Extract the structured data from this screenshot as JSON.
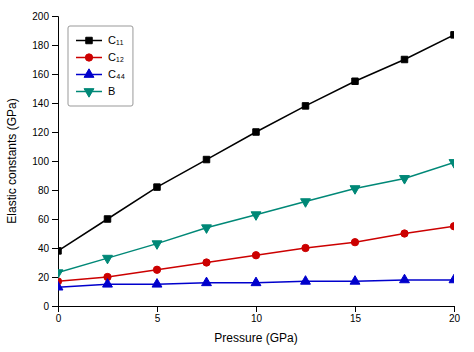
{
  "chart_data": {
    "type": "line",
    "x": [
      0,
      2.5,
      5,
      7.5,
      10,
      12.5,
      15,
      17.5,
      20
    ],
    "series": [
      {
        "name": "C₁₁",
        "color": "#000000",
        "marker": "square",
        "values": [
          38,
          60,
          82,
          101,
          120,
          138,
          155,
          170,
          187
        ]
      },
      {
        "name": "C₁₂",
        "color": "#cc0000",
        "marker": "circle",
        "values": [
          17,
          20,
          25,
          30,
          35,
          40,
          44,
          50,
          55
        ]
      },
      {
        "name": "C₄₄",
        "color": "#0000cc",
        "marker": "triangle-up",
        "values": [
          13,
          15,
          15,
          16,
          16,
          17,
          17,
          18,
          18
        ]
      },
      {
        "name": "B",
        "color": "#008877",
        "marker": "triangle-down",
        "values": [
          23,
          33,
          43,
          54,
          63,
          72,
          81,
          88,
          99
        ]
      }
    ],
    "xlabel": "Pressure (GPa)",
    "ylabel": "Elastic constants (GPa)",
    "xlim": [
      0,
      20
    ],
    "ylim": [
      0,
      200
    ],
    "xticks": [
      0,
      5,
      10,
      15,
      20
    ],
    "yticks": [
      0,
      20,
      40,
      60,
      80,
      100,
      120,
      140,
      160,
      180,
      200
    ],
    "grid": false,
    "legend": "upper left"
  }
}
